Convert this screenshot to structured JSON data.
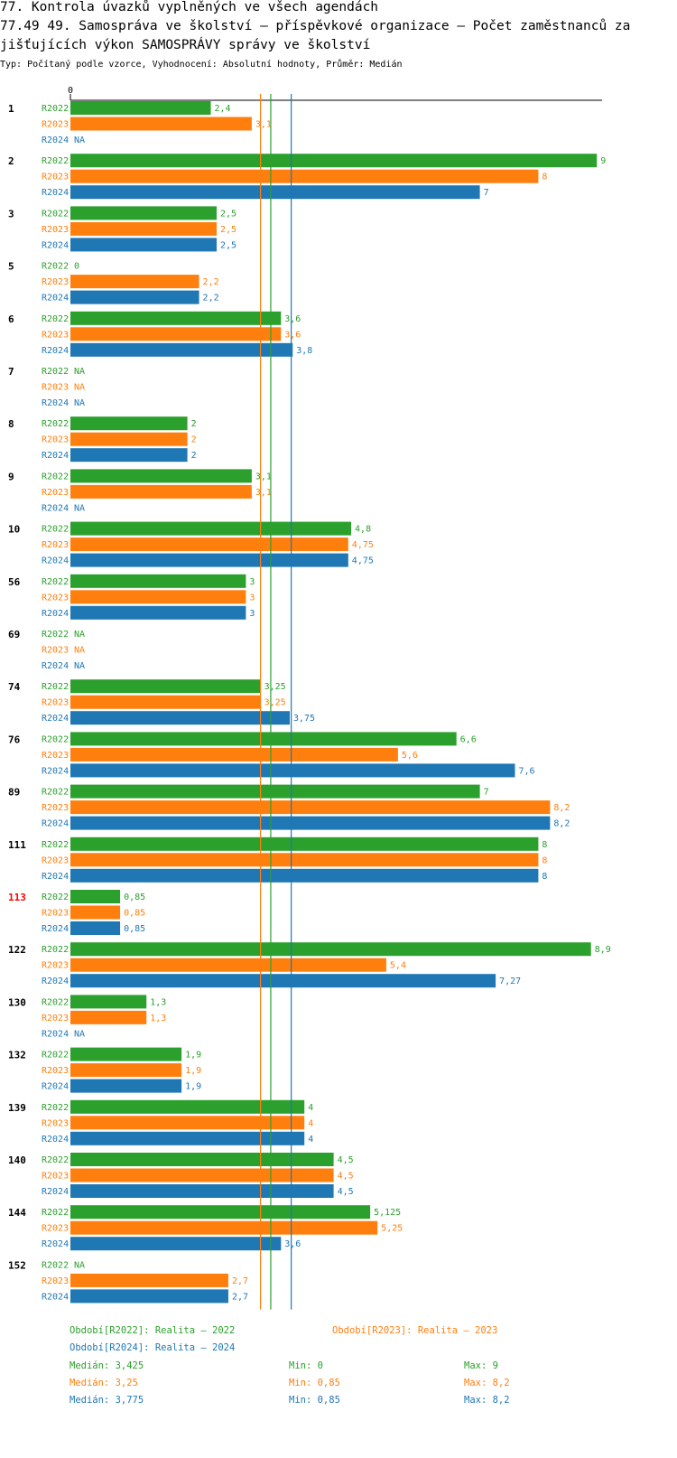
{
  "header": {
    "title_line1": "77. Kontrola úvazků vyplněných ve všech agendách",
    "title_line2": "77.49 49. Samospráva ve školství – příspěvkové organizace  – Počet zaměstnanců za",
    "title_line3": "jišťujících výkon SAMOSPRÁVY správy ve školství",
    "subtitle": "Typ: Počítaný podle vzorce, Vyhodnocení: Absolutní hodnoty, Průměr: Medián"
  },
  "colors": {
    "R2022": "#2ca02c",
    "R2023": "#ff7f0e",
    "R2024": "#1f77b4",
    "highlight": "#ff0000"
  },
  "chart_data": {
    "type": "bar",
    "orientation": "horizontal",
    "axis_label_zero": "0",
    "xlim": [
      0,
      9
    ],
    "series_names": [
      "R2022",
      "R2023",
      "R2024"
    ],
    "groups": [
      {
        "label": "1",
        "highlight": false,
        "values": [
          2.4,
          3.1,
          null
        ],
        "labels": [
          "2,4",
          "3,1",
          "NA"
        ]
      },
      {
        "label": "2",
        "highlight": false,
        "values": [
          9,
          8,
          7
        ],
        "labels": [
          "9",
          "8",
          "7"
        ]
      },
      {
        "label": "3",
        "highlight": false,
        "values": [
          2.5,
          2.5,
          2.5
        ],
        "labels": [
          "2,5",
          "2,5",
          "2,5"
        ]
      },
      {
        "label": "5",
        "highlight": false,
        "values": [
          0,
          2.2,
          2.2
        ],
        "labels": [
          "0",
          "2,2",
          "2,2"
        ]
      },
      {
        "label": "6",
        "highlight": false,
        "values": [
          3.6,
          3.6,
          3.8
        ],
        "labels": [
          "3,6",
          "3,6",
          "3,8"
        ]
      },
      {
        "label": "7",
        "highlight": false,
        "values": [
          null,
          null,
          null
        ],
        "labels": [
          "NA",
          "NA",
          "NA"
        ]
      },
      {
        "label": "8",
        "highlight": false,
        "values": [
          2,
          2,
          2
        ],
        "labels": [
          "2",
          "2",
          "2"
        ]
      },
      {
        "label": "9",
        "highlight": false,
        "values": [
          3.1,
          3.1,
          null
        ],
        "labels": [
          "3,1",
          "3,1",
          "NA"
        ]
      },
      {
        "label": "10",
        "highlight": false,
        "values": [
          4.8,
          4.75,
          4.75
        ],
        "labels": [
          "4,8",
          "4,75",
          "4,75"
        ]
      },
      {
        "label": "56",
        "highlight": false,
        "values": [
          3,
          3,
          3
        ],
        "labels": [
          "3",
          "3",
          "3"
        ]
      },
      {
        "label": "69",
        "highlight": false,
        "values": [
          null,
          null,
          null
        ],
        "labels": [
          "NA",
          "NA",
          "NA"
        ]
      },
      {
        "label": "74",
        "highlight": false,
        "values": [
          3.25,
          3.25,
          3.75
        ],
        "labels": [
          "3,25",
          "3,25",
          "3,75"
        ]
      },
      {
        "label": "76",
        "highlight": false,
        "values": [
          6.6,
          5.6,
          7.6
        ],
        "labels": [
          "6,6",
          "5,6",
          "7,6"
        ]
      },
      {
        "label": "89",
        "highlight": false,
        "values": [
          7,
          8.2,
          8.2
        ],
        "labels": [
          "7",
          "8,2",
          "8,2"
        ]
      },
      {
        "label": "111",
        "highlight": false,
        "values": [
          8,
          8,
          8
        ],
        "labels": [
          "8",
          "8",
          "8"
        ]
      },
      {
        "label": "113",
        "highlight": true,
        "values": [
          0.85,
          0.85,
          0.85
        ],
        "labels": [
          "0,85",
          "0,85",
          "0,85"
        ]
      },
      {
        "label": "122",
        "highlight": false,
        "values": [
          8.9,
          5.4,
          7.27
        ],
        "labels": [
          "8,9",
          "5,4",
          "7,27"
        ]
      },
      {
        "label": "130",
        "highlight": false,
        "values": [
          1.3,
          1.3,
          null
        ],
        "labels": [
          "1,3",
          "1,3",
          "NA"
        ]
      },
      {
        "label": "132",
        "highlight": false,
        "values": [
          1.9,
          1.9,
          1.9
        ],
        "labels": [
          "1,9",
          "1,9",
          "1,9"
        ]
      },
      {
        "label": "139",
        "highlight": false,
        "values": [
          4,
          4,
          4
        ],
        "labels": [
          "4",
          "4",
          "4"
        ]
      },
      {
        "label": "140",
        "highlight": false,
        "values": [
          4.5,
          4.5,
          4.5
        ],
        "labels": [
          "4,5",
          "4,5",
          "4,5"
        ]
      },
      {
        "label": "144",
        "highlight": false,
        "values": [
          5.125,
          5.25,
          3.6
        ],
        "labels": [
          "5,125",
          "5,25",
          "3,6"
        ]
      },
      {
        "label": "152",
        "highlight": false,
        "values": [
          null,
          2.7,
          2.7
        ],
        "labels": [
          "NA",
          "2,7",
          "2,7"
        ]
      }
    ],
    "median_lines": [
      3.425,
      3.25,
      3.775
    ]
  },
  "legend": {
    "r2022": "Období[R2022]: Realita – 2022",
    "r2023": "Období[R2023]: Realita – 2023",
    "r2024": "Období[R2024]: Realita – 2024"
  },
  "stats": [
    {
      "median": "Medián: 3,425",
      "min": "Min: 0",
      "max": "Max: 9"
    },
    {
      "median": "Medián: 3,25",
      "min": "Min: 0,85",
      "max": "Max: 8,2"
    },
    {
      "median": "Medián: 3,775",
      "min": "Min: 0,85",
      "max": "Max: 8,2"
    }
  ]
}
